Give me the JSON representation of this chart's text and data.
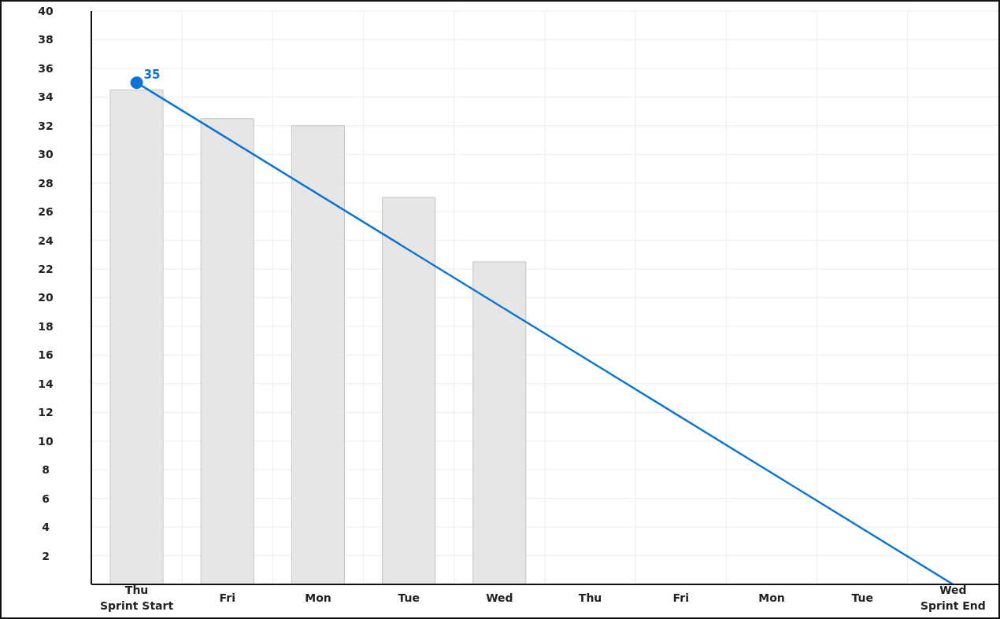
{
  "chart_data": {
    "type": "bar",
    "categories": [
      "Thu\nSprint Start",
      "Fri",
      "Mon",
      "Tue",
      "Wed",
      "Thu",
      "Fri",
      "Mon",
      "Tue",
      "Wed\nSprint End"
    ],
    "series": [
      {
        "color": "#e6e6e6",
        "values": [
          34.5,
          32.5,
          32,
          27,
          22.5,
          null,
          null,
          null,
          null,
          null
        ]
      },
      {
        "type": "line",
        "color": "#0a74d6",
        "marker": "none",
        "values": [
          35,
          null,
          null,
          null,
          null,
          null,
          null,
          null,
          null,
          0
        ]
      },
      {
        "type": "scatter",
        "color": "#0a74d6",
        "marker": "circle",
        "values": [
          35,
          null,
          null,
          null,
          null,
          null,
          null,
          null,
          null,
          null
        ],
        "value_labels": [
          "35",
          null,
          null,
          null,
          null,
          null,
          null,
          null,
          null,
          null
        ]
      }
    ],
    "ylim": [
      0,
      40
    ],
    "yticks": [
      2,
      4,
      6,
      8,
      10,
      12,
      14,
      16,
      18,
      20,
      22,
      24,
      26,
      28,
      30,
      32,
      34,
      36,
      38,
      40
    ],
    "grid": true,
    "legend": false
  }
}
